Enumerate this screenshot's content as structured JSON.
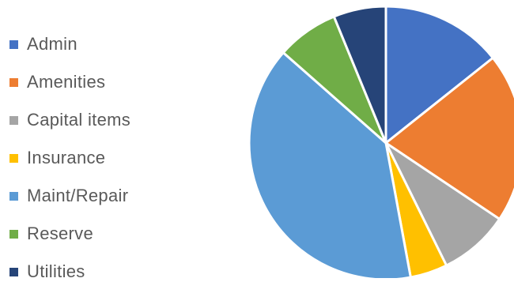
{
  "chart_data": {
    "type": "pie",
    "title": "",
    "legend_position": "left",
    "start_angle_deg": 0,
    "direction": "clockwise",
    "slices": [
      {
        "label": "Admin",
        "value": 14.3,
        "color": "#4472C4"
      },
      {
        "label": "Amenities",
        "value": 20.1,
        "color": "#ED7D31"
      },
      {
        "label": "Capital items",
        "value": 8.3,
        "color": "#A5A5A5"
      },
      {
        "label": "Insurance",
        "value": 4.4,
        "color": "#FFC000"
      },
      {
        "label": "Maint/Repair",
        "value": 39.4,
        "color": "#5B9BD5"
      },
      {
        "label": "Reserve",
        "value": 7.3,
        "color": "#70AD47"
      },
      {
        "label": "Utilities",
        "value": 6.2,
        "color": "#264478"
      }
    ]
  }
}
